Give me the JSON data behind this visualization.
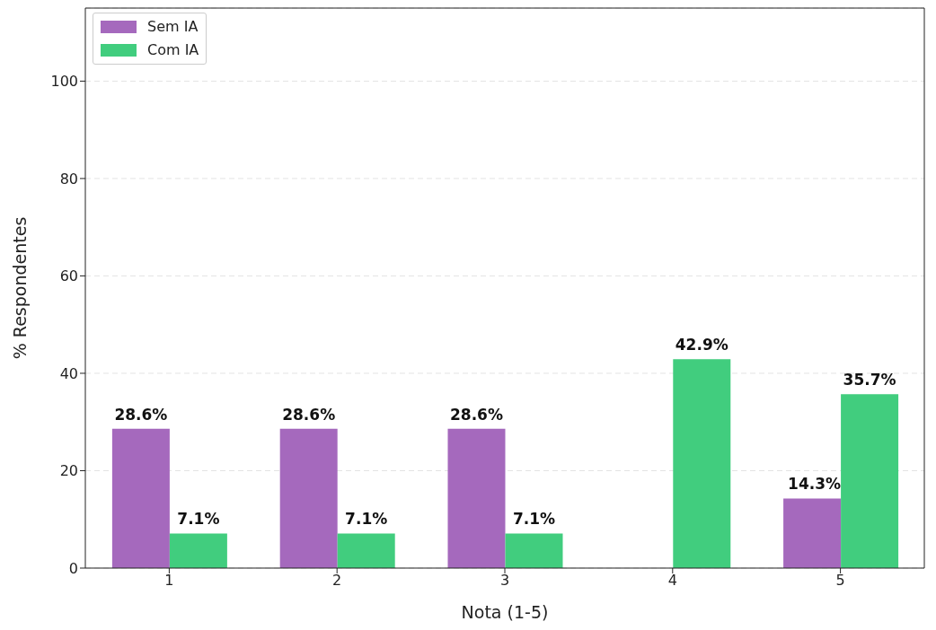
{
  "chart_data": {
    "type": "bar",
    "xlabel": "Nota (1-5)",
    "ylabel": "% Respondentes",
    "categories": [
      "1",
      "2",
      "3",
      "4",
      "5"
    ],
    "series": [
      {
        "name": "Sem IA",
        "color": "#a569bd",
        "values": [
          28.6,
          28.6,
          28.6,
          0,
          14.3
        ],
        "value_labels": [
          "28.6%",
          "28.6%",
          "28.6%",
          null,
          "14.3%"
        ]
      },
      {
        "name": "Com IA",
        "color": "#41cd7e",
        "values": [
          7.1,
          7.1,
          7.1,
          42.9,
          35.7
        ],
        "value_labels": [
          "7.1%",
          "7.1%",
          "7.1%",
          "42.9%",
          "35.7%"
        ]
      }
    ],
    "ylim": [
      0,
      115
    ],
    "yticks": [
      0,
      20,
      40,
      60,
      80,
      100
    ],
    "grid": "y",
    "legend": "top left"
  }
}
